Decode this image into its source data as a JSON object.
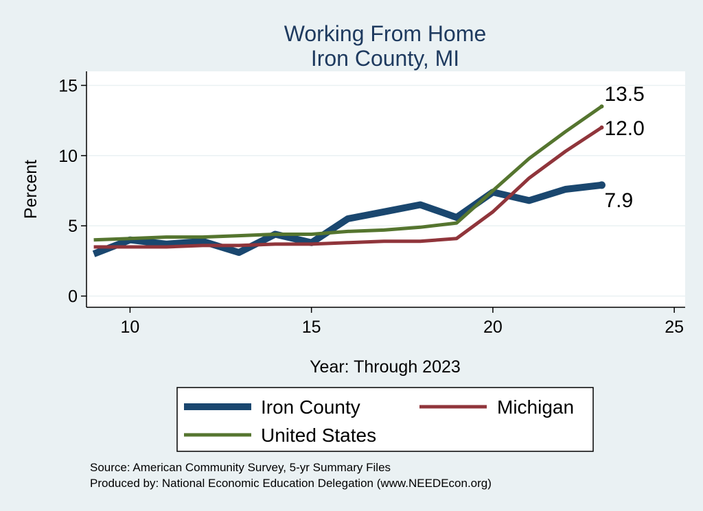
{
  "chart_data": {
    "type": "line",
    "title": [
      "Working From Home",
      "Iron County, MI"
    ],
    "xlabel": "Year: Through 2023",
    "ylabel": "Percent",
    "xlim": [
      8.8,
      25.3
    ],
    "ylim": [
      -0.8,
      16
    ],
    "xticks": [
      10,
      15,
      20,
      25
    ],
    "yticks": [
      0,
      5,
      10,
      15
    ],
    "grid": true,
    "legend_position": "bottom",
    "series": [
      {
        "name": "Iron County",
        "color": "#1a476f",
        "x": [
          9,
          10,
          11,
          12,
          13,
          14,
          15,
          16,
          17,
          18,
          19,
          20,
          21,
          22,
          23
        ],
        "values": [
          3.0,
          4.0,
          3.7,
          3.9,
          3.1,
          4.4,
          3.8,
          5.5,
          6.0,
          6.5,
          5.6,
          7.4,
          6.8,
          7.6,
          7.9
        ]
      },
      {
        "name": "Michigan",
        "color": "#90353b",
        "x": [
          9,
          10,
          11,
          12,
          13,
          14,
          15,
          16,
          17,
          18,
          19,
          20,
          21,
          22,
          23
        ],
        "values": [
          3.5,
          3.5,
          3.5,
          3.6,
          3.6,
          3.7,
          3.7,
          3.8,
          3.9,
          3.9,
          4.1,
          6.0,
          8.4,
          10.3,
          12.0
        ]
      },
      {
        "name": "United States",
        "color": "#55752f",
        "x": [
          9,
          10,
          11,
          12,
          13,
          14,
          15,
          16,
          17,
          18,
          19,
          20,
          21,
          22,
          23
        ],
        "values": [
          4.0,
          4.1,
          4.2,
          4.2,
          4.3,
          4.4,
          4.4,
          4.6,
          4.7,
          4.9,
          5.2,
          7.5,
          9.8,
          11.7,
          13.5
        ]
      }
    ],
    "end_labels": [
      "13.5",
      "12.0",
      "7.9"
    ],
    "source_lines": [
      "Source: American Community Survey, 5-yr Summary Files",
      "Produced by: National Economic Education Delegation (www.NEEDEcon.org)"
    ]
  }
}
